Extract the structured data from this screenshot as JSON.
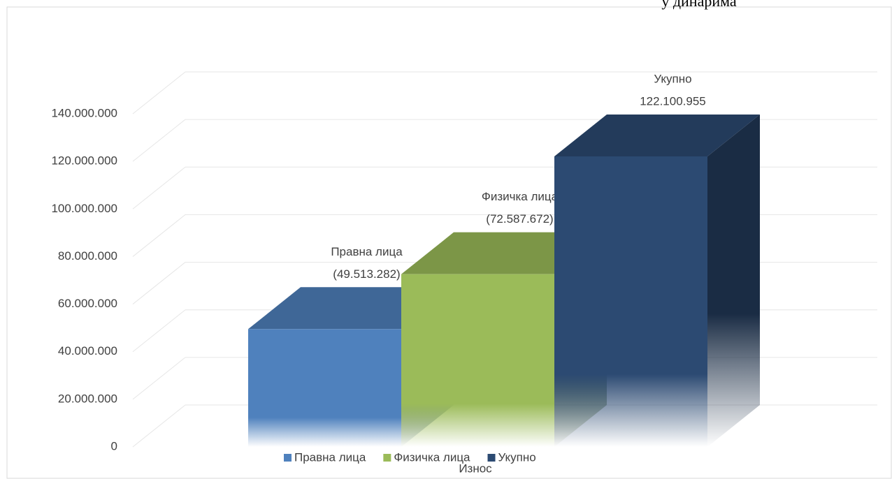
{
  "chart_data": {
    "type": "bar3d",
    "title": "у динарима",
    "x_label": "Износ",
    "categories": [
      "Износ"
    ],
    "series": [
      {
        "name": "Правна лица",
        "color": "#4f81bd",
        "values": [
          49513282
        ],
        "value_labels": [
          "(49.513.282)"
        ]
      },
      {
        "name": "Физичка лица",
        "color": "#9bbb59",
        "values": [
          72587672
        ],
        "value_labels": [
          "(72.587.672)"
        ]
      },
      {
        "name": "Укупно",
        "color": "#2c4a72",
        "values": [
          122100955
        ],
        "value_labels": [
          "122.100.955"
        ]
      }
    ],
    "ylim": [
      0,
      140000000
    ],
    "yticks": [
      {
        "value": 0,
        "label": "0"
      },
      {
        "value": 20000000,
        "label": "20.000.000"
      },
      {
        "value": 40000000,
        "label": "40.000.000"
      },
      {
        "value": 60000000,
        "label": "60.000.000"
      },
      {
        "value": 80000000,
        "label": "80.000.000"
      },
      {
        "value": 100000000,
        "label": "100.000.000"
      },
      {
        "value": 120000000,
        "label": "120.000.000"
      },
      {
        "value": 140000000,
        "label": "140.000.000"
      }
    ],
    "grid": true,
    "legend": "bottom"
  }
}
